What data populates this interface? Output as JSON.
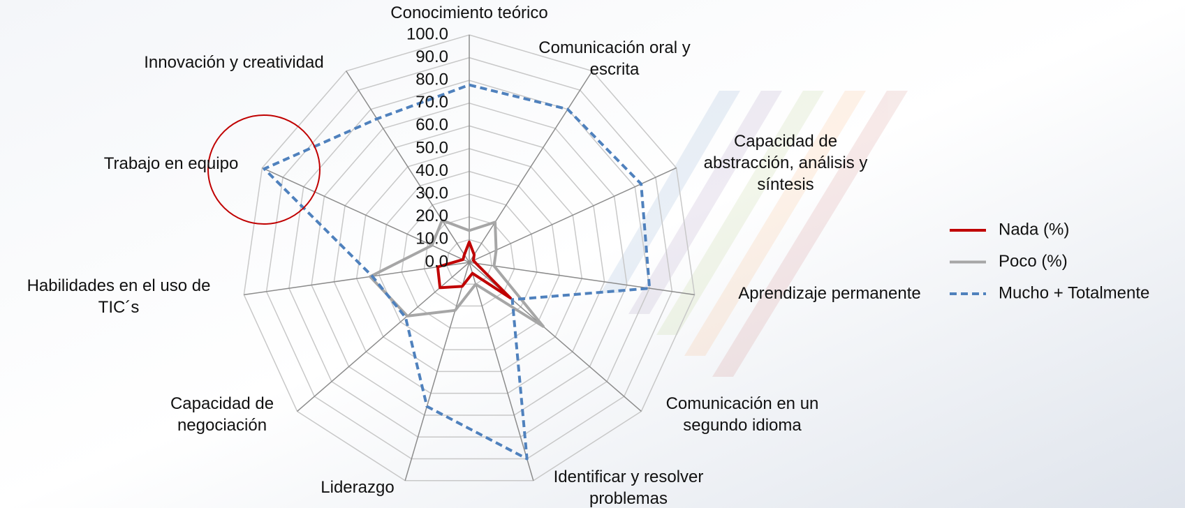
{
  "chart_data": {
    "type": "radar",
    "categories": [
      "Conocimiento teórico",
      "Comunicación oral y\nescrita",
      "Capacidad de\nabstracción, análisis y\nsíntesis",
      "Aprendizaje permanente",
      "Comunicación en un\nsegundo idioma",
      "Identificar y resolver\nproblemas",
      "Liderazgo",
      "Capacidad de\nnegociación",
      "Habilidades en el uso de\nTIC´s",
      "Trabajo en equipo",
      "Innovación y creatividad"
    ],
    "series": [
      {
        "name": "Nada (%)",
        "color": "#c00000",
        "dash": "solid",
        "values": [
          9,
          4,
          2,
          3,
          24,
          5,
          11,
          17,
          14,
          3,
          4
        ]
      },
      {
        "name": "Poco (%)",
        "color": "#a6a6a6",
        "dash": "solid",
        "values": [
          14,
          21,
          13,
          11,
          43,
          10,
          22,
          36,
          44,
          18,
          22
        ]
      },
      {
        "name": "Mucho + Totalmente",
        "color": "#4f81bd",
        "dash": "dashed",
        "values": [
          78,
          80,
          83,
          80,
          25,
          90,
          66,
          37,
          43,
          99,
          75
        ]
      }
    ],
    "rlim": [
      0,
      100
    ],
    "rticks": [
      {
        "value": 0,
        "label": "0.0"
      },
      {
        "value": 10,
        "label": "10.0"
      },
      {
        "value": 20,
        "label": "20.0"
      },
      {
        "value": 30,
        "label": "30.0"
      },
      {
        "value": 40,
        "label": "40.0"
      },
      {
        "value": 50,
        "label": "50.0"
      },
      {
        "value": 60,
        "label": "60.0"
      },
      {
        "value": 70,
        "label": "70.0"
      },
      {
        "value": 80,
        "label": "80.0"
      },
      {
        "value": 90,
        "label": "90.0"
      },
      {
        "value": 100,
        "label": "100.0"
      }
    ],
    "grid": true,
    "legend": "right"
  }
}
